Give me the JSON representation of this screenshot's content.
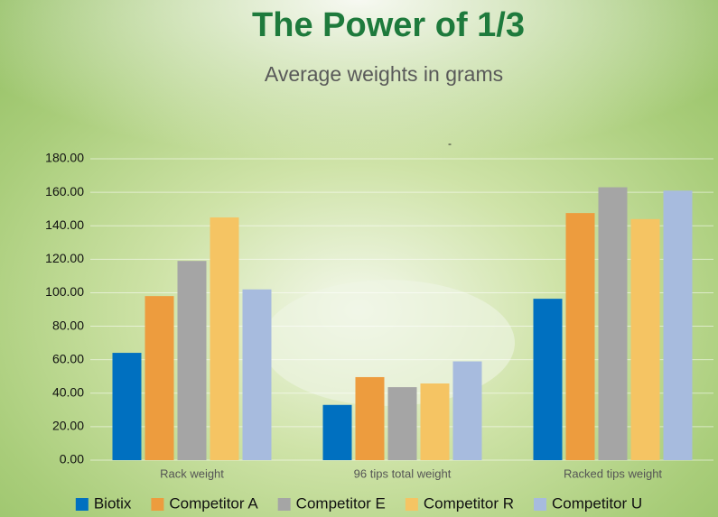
{
  "chart_data": {
    "type": "bar",
    "title": "The Power of 1/3",
    "subtitle": "Average weights in grams",
    "annotation": "-",
    "categories": [
      "Rack weight",
      "96 tips total weight",
      "Racked tips weight"
    ],
    "series": [
      {
        "name": "Biotix",
        "color": "#0070c0",
        "values": [
          64.1,
          33.0,
          96.4
        ]
      },
      {
        "name": "Competitor A",
        "color": "#ed9c3e",
        "values": [
          98.0,
          49.6,
          147.6
        ]
      },
      {
        "name": "Competitor E",
        "color": "#a5a5a5",
        "values": [
          119.0,
          43.6,
          163.0
        ]
      },
      {
        "name": "Competitor R",
        "color": "#f5c463",
        "values": [
          145.0,
          45.8,
          144.0
        ]
      },
      {
        "name": "Competitor U",
        "color": "#a7bbde",
        "values": [
          102.0,
          59.0,
          161.0
        ]
      }
    ],
    "ylim": [
      0,
      180
    ],
    "yticks": [
      {
        "value": 0,
        "label": "0.00"
      },
      {
        "value": 20,
        "label": "20.00"
      },
      {
        "value": 40,
        "label": "40.00"
      },
      {
        "value": 60,
        "label": "60.00"
      },
      {
        "value": 80,
        "label": "80.00"
      },
      {
        "value": 100,
        "label": "100.00"
      },
      {
        "value": 120,
        "label": "120.00"
      },
      {
        "value": 140,
        "label": "140.00"
      },
      {
        "value": 160,
        "label": "160.00"
      },
      {
        "value": 180,
        "label": "180.00"
      }
    ],
    "grid": true,
    "legend": "bottom"
  }
}
